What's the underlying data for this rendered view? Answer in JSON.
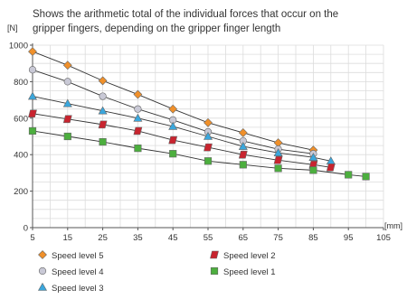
{
  "chart_data": {
    "type": "line",
    "title": "Shows the arithmetic total of the individual forces that occur on the gripper fingers, depending on the gripper finger length",
    "ylabel": "[N]",
    "xlabel": "[mm]",
    "xlim": [
      5,
      105
    ],
    "ylim": [
      0,
      1000
    ],
    "x_ticks": [
      "5",
      "15",
      "25",
      "35",
      "45",
      "55",
      "65",
      "75",
      "85",
      "95",
      "105"
    ],
    "y_ticks": [
      "0",
      "200",
      "400",
      "600",
      "800",
      "1000"
    ],
    "grid": true,
    "legend_position": "bottom",
    "series": [
      {
        "name": "Speed level 5",
        "marker": "diamond",
        "color": "#f0902a",
        "x": [
          5,
          15,
          25,
          35,
          45,
          55,
          65,
          75,
          85
        ],
        "y": [
          965,
          890,
          805,
          730,
          650,
          575,
          520,
          465,
          425
        ]
      },
      {
        "name": "Speed level 4",
        "marker": "circle",
        "color": "#c9c9d6",
        "x": [
          5,
          15,
          25,
          35,
          45,
          55,
          65,
          75,
          85
        ],
        "y": [
          865,
          800,
          720,
          650,
          590,
          525,
          475,
          430,
          405
        ]
      },
      {
        "name": "Speed level 3",
        "marker": "triangle",
        "color": "#3aa7dd",
        "x": [
          5,
          15,
          25,
          35,
          45,
          55,
          65,
          75,
          85,
          90
        ],
        "y": [
          720,
          680,
          640,
          600,
          555,
          500,
          445,
          410,
          385,
          365
        ]
      },
      {
        "name": "Speed level 2",
        "marker": "parallelogram",
        "color": "#c8242f",
        "x": [
          5,
          15,
          25,
          35,
          45,
          55,
          65,
          75,
          85,
          90
        ],
        "y": [
          625,
          595,
          565,
          530,
          480,
          440,
          400,
          370,
          345,
          330
        ]
      },
      {
        "name": "Speed level 1",
        "marker": "square",
        "color": "#4caf3e",
        "x": [
          5,
          15,
          25,
          35,
          45,
          55,
          65,
          75,
          85,
          95,
          100
        ],
        "y": [
          530,
          500,
          470,
          435,
          405,
          365,
          345,
          325,
          315,
          290,
          280
        ]
      }
    ],
    "legend_order": [
      0,
      3,
      1,
      4,
      2
    ]
  }
}
